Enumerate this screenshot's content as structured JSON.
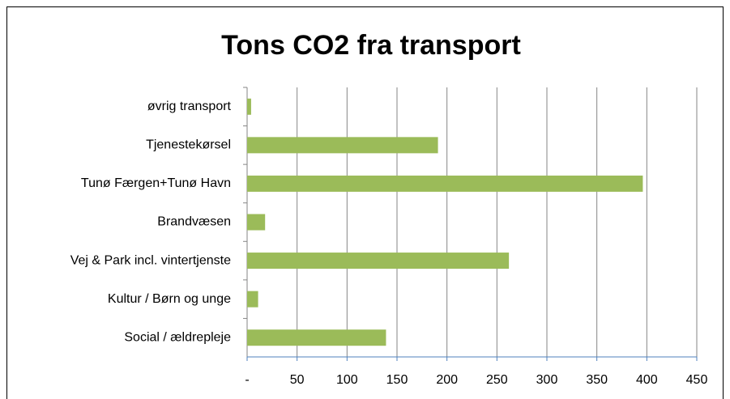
{
  "chart_data": {
    "type": "bar",
    "orientation": "horizontal",
    "title": "Tons CO2  fra transport",
    "categories": [
      "øvrig transport",
      "Tjenestekørsel",
      "Tunø Færgen+Tunø Havn",
      "Brandvæsen",
      "Vej & Park incl. vintertjenste",
      "Kultur / Børn og unge",
      "Social / ældrepleje"
    ],
    "values": [
      4,
      191,
      396,
      18,
      262,
      11,
      139
    ],
    "color": "#9bbb59",
    "xlim": [
      0,
      450
    ],
    "xticks": [
      {
        "value": 0,
        "label": "-"
      },
      50,
      100,
      150,
      200,
      250,
      300,
      350,
      400,
      450
    ],
    "grid": true
  }
}
